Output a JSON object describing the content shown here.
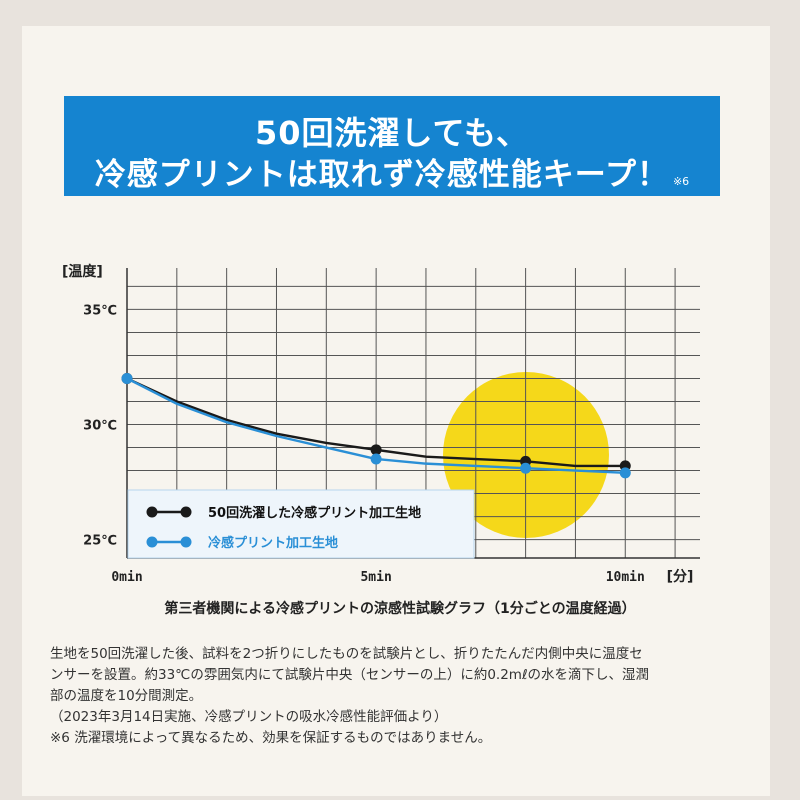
{
  "banner": {
    "line1": "50回洗濯しても、",
    "line2": "冷感プリントは取れず冷感性能キープ！",
    "note": "※6",
    "bg_color": "#1584d0"
  },
  "chart_data": {
    "type": "line",
    "ylabel": "[温度]",
    "xlabel": "[分]",
    "y_ticks": [
      {
        "value": 35,
        "label": "35℃"
      },
      {
        "value": 30,
        "label": "30℃"
      },
      {
        "value": 25,
        "label": "25℃"
      }
    ],
    "x_ticks": [
      {
        "value": 0,
        "label": "0min"
      },
      {
        "value": 5,
        "label": "5min"
      },
      {
        "value": 10,
        "label": "10min"
      }
    ],
    "xlim": [
      0,
      11.5
    ],
    "ylim": [
      24.2,
      36.8
    ],
    "grid": true,
    "legend_position": "bottom-left",
    "series": [
      {
        "name": "50回洗濯した冷感プリント加工生地",
        "color": "#1a1a1a",
        "x": [
          0,
          1,
          2,
          3,
          4,
          5,
          6,
          7,
          8,
          9,
          10
        ],
        "y": [
          32.0,
          31.0,
          30.2,
          29.6,
          29.2,
          28.9,
          28.6,
          28.5,
          28.4,
          28.2,
          28.2
        ],
        "markers": [
          0,
          5,
          8,
          10
        ]
      },
      {
        "name": "冷感プリント加工生地",
        "color": "#2a8fd6",
        "x": [
          0,
          1,
          2,
          3,
          4,
          5,
          6,
          7,
          8,
          9,
          10
        ],
        "y": [
          32.0,
          30.9,
          30.1,
          29.5,
          29.0,
          28.5,
          28.3,
          28.2,
          28.1,
          28.0,
          27.9
        ],
        "markers": [
          0,
          5,
          8,
          10
        ]
      }
    ],
    "highlight_color": "#f5d81a"
  },
  "caption": "第三者機関による冷感プリントの涼感性試験グラフ（1分ごとの温度経過）",
  "description": [
    "生地を50回洗濯した後、試料を2つ折りにしたものを試験片とし、折りたたんだ内側中央に温度セ",
    "ンサーを設置。約33℃の雰囲気内にて試験片中央（センサーの上）に約0.2mℓの水を滴下し、湿潤",
    "部の温度を10分間測定。",
    "（2023年3月14日実施、冷感プリントの吸水冷感性能評価より）",
    "※6 洗濯環境によって異なるため、効果を保証するものではありません。"
  ]
}
